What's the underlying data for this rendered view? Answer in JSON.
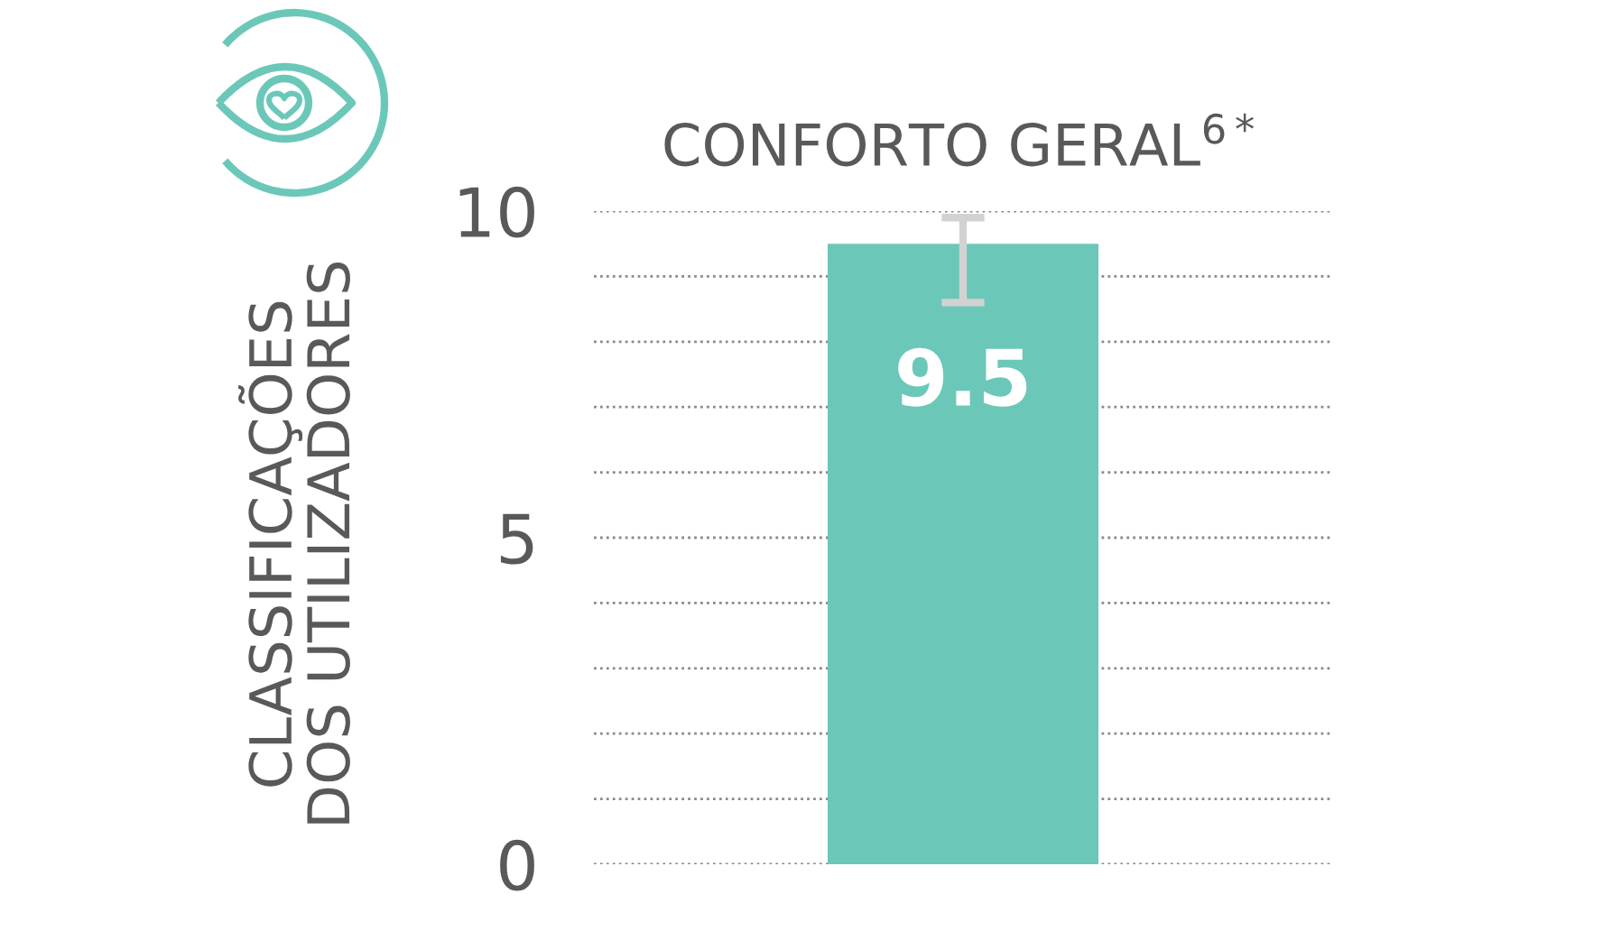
{
  "chart_data": {
    "type": "bar",
    "title": "CONFORTO GERAL$^{6*}$",
    "ylabel": "CLASSIFICAÇÕES\nDOS UTILIZADORES",
    "categories": [
      null
    ],
    "values": [
      9.5
    ],
    "errors": [
      [
        8.6,
        9.9
      ]
    ],
    "color": "#6bc8b8",
    "data_labels": true,
    "ylim": [
      0,
      10
    ],
    "yticks": [
      0,
      {
        "value": 1,
        "label": null
      },
      {
        "value": 2,
        "label": null
      },
      {
        "value": 3,
        "label": null
      },
      {
        "value": 4,
        "label": null
      },
      5,
      {
        "value": 6,
        "label": null
      },
      {
        "value": 7,
        "label": null
      },
      {
        "value": 8,
        "label": null
      },
      {
        "value": 9,
        "label": null
      },
      10
    ],
    "grid": "y"
  }
}
